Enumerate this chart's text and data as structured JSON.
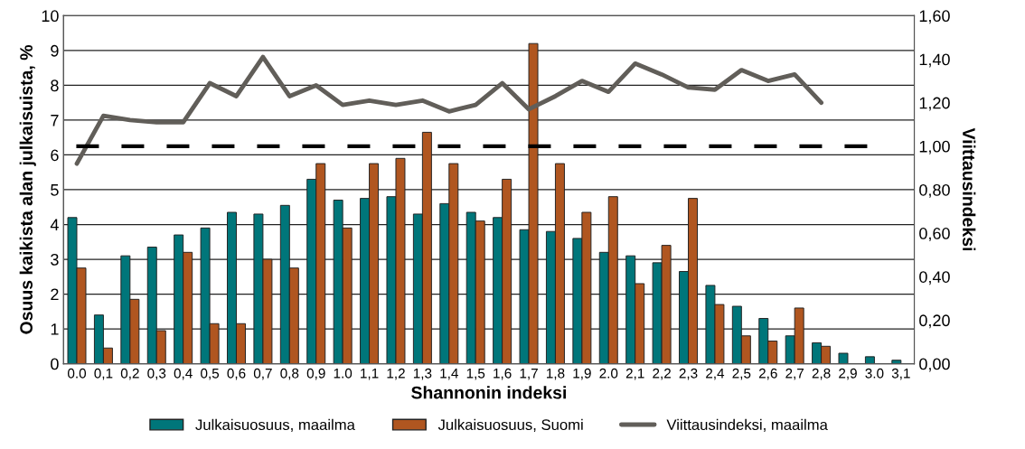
{
  "chart_data": {
    "type": "bar",
    "xlabel": "Shannonin indeksi",
    "ylabel": "Osuus kaikista alan julkaisuista, %",
    "y2label": "Viittausindeksi",
    "categories": [
      "0.0",
      "0,1",
      "0,2",
      "0,3",
      "0,4",
      "0,5",
      "0,6",
      "0,7",
      "0,8",
      "0,9",
      "1.0",
      "1,1",
      "1,2",
      "1,3",
      "1,4",
      "1,5",
      "1,6",
      "1,7",
      "1,8",
      "1,9",
      "2.0",
      "2,1",
      "2,2",
      "2,3",
      "2,4",
      "2,5",
      "2,6",
      "2,7",
      "2,8",
      "2,9",
      "3.0",
      "3,1"
    ],
    "series": [
      {
        "name": "Julkaisuosuus, maailma",
        "color": "#00767a",
        "values": [
          4.2,
          1.4,
          3.1,
          3.35,
          3.7,
          3.9,
          4.35,
          4.3,
          4.55,
          5.3,
          4.7,
          4.75,
          4.8,
          4.3,
          4.6,
          4.35,
          4.2,
          3.85,
          3.8,
          3.6,
          3.2,
          3.1,
          2.9,
          2.65,
          2.25,
          1.65,
          1.3,
          0.8,
          0.6,
          0.3,
          0.2,
          0.1
        ]
      },
      {
        "name": "Julkaisuosuus, Suomi",
        "color": "#b05620",
        "values": [
          2.75,
          0.45,
          1.85,
          0.95,
          3.2,
          1.15,
          1.15,
          3.0,
          2.75,
          5.75,
          3.9,
          5.75,
          5.9,
          6.65,
          5.75,
          4.1,
          5.3,
          9.2,
          5.75,
          4.35,
          4.8,
          2.3,
          3.4,
          4.75,
          1.7,
          0.8,
          0.65,
          1.6,
          0.5,
          null,
          null,
          null
        ]
      },
      {
        "name": "Viittausindeksi, maailma",
        "type": "line",
        "axis": "y2",
        "color": "#615e59",
        "values": [
          0.92,
          1.14,
          1.12,
          1.11,
          1.11,
          1.29,
          1.23,
          1.41,
          1.23,
          1.28,
          1.19,
          1.21,
          1.19,
          1.21,
          1.16,
          1.19,
          1.29,
          1.17,
          1.23,
          1.3,
          1.25,
          1.38,
          1.33,
          1.27,
          1.26,
          1.35,
          1.3,
          1.33,
          1.2,
          null,
          null,
          null
        ]
      }
    ],
    "ylim": [
      0,
      10
    ],
    "yticks": [
      0,
      1,
      2,
      3,
      4,
      5,
      6,
      7,
      8,
      9,
      10
    ],
    "y2lim": [
      0,
      1.6
    ],
    "y2ticks": [
      {
        "value": 0,
        "label": "0,00"
      },
      {
        "value": 0.2,
        "label": "0,20"
      },
      {
        "value": 0.4,
        "label": "0,40"
      },
      {
        "value": 0.6,
        "label": "0,60"
      },
      {
        "value": 0.8,
        "label": "0,80"
      },
      {
        "value": 1.0,
        "label": "1,00"
      },
      {
        "value": 1.2,
        "label": "1,20"
      },
      {
        "value": 1.4,
        "label": "1,40"
      },
      {
        "value": 1.6,
        "label": "1,60"
      }
    ],
    "ref_lines": [
      {
        "axis": "y2",
        "value": 1.0,
        "color": "#000000",
        "line_style": "dashed"
      }
    ],
    "grid": "y",
    "legend": "bottom",
    "marker": "none",
    "line_style": "solid"
  }
}
